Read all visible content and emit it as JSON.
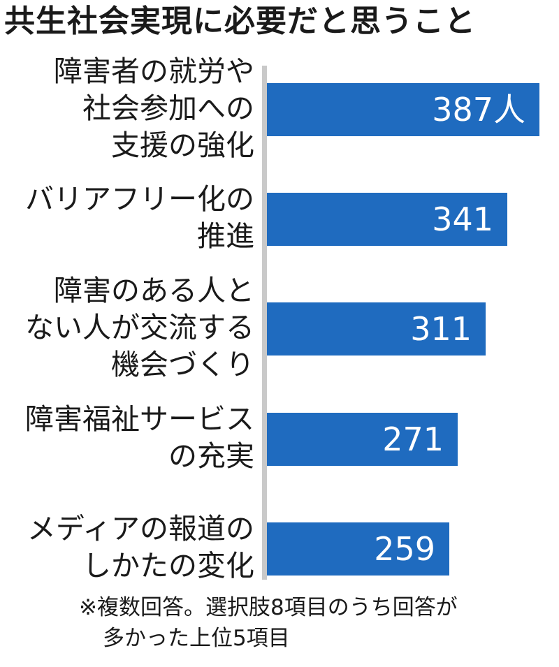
{
  "chart_data": {
    "type": "bar",
    "orientation": "horizontal",
    "title": "共生社会実現に必要だと思うこと",
    "categories": [
      [
        "障害者の就労や",
        "社会参加への",
        "支援の強化"
      ],
      [
        "バリアフリー化の",
        "推進"
      ],
      [
        "障害のある人と",
        "ない人が交流する",
        "機会づくり"
      ],
      [
        "障害福祉サービス",
        "の充実"
      ],
      [
        "メディアの報道の",
        "しかたの変化"
      ]
    ],
    "values": [
      387,
      341,
      311,
      271,
      259
    ],
    "data_labels": [
      "387人",
      "341",
      "311",
      "271",
      "259"
    ],
    "xlim": [
      0,
      387
    ],
    "grid": false,
    "legend": "none",
    "bar_color": "#1f6bbf",
    "note": [
      "※複数回答。選択肢8項目のうち回答が",
      "多かった上位5項目"
    ]
  }
}
